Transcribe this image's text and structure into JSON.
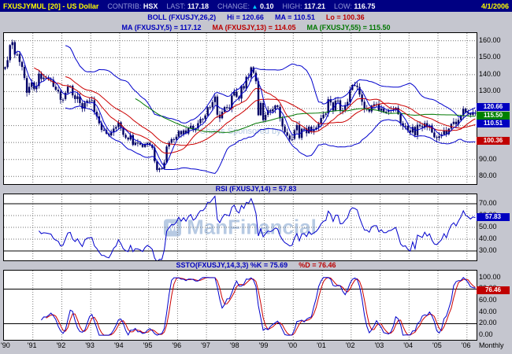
{
  "header": {
    "symbol": "FXUSJYMUL [20] - US Dollar",
    "fields": [
      {
        "label": "CONTRIB:",
        "value": "HSX"
      },
      {
        "label": "LAST:",
        "value": "117.18"
      },
      {
        "label": "CHANGE:",
        "arrow": "▲",
        "value": "0.10"
      },
      {
        "label": "HIGH:",
        "value": "117.21"
      },
      {
        "label": "LOW:",
        "value": "116.75"
      }
    ],
    "date": "4/1/2006"
  },
  "overlay_rows": {
    "boll": {
      "name": "BOLL (FXUSJY,26,2)",
      "hi": "Hi = 120.66",
      "ma": "MA = 110.51",
      "lo": "Lo = 100.36"
    },
    "ma": {
      "ma5": "MA (FXUSJY,5) = 117.12",
      "ma13": "MA (FXUSJY,13) = 114.05",
      "ma55": "MA (FXUSJY,55) = 115.50"
    }
  },
  "panels": {
    "rsi_title": "RSI (FXUSJY,14) = 57.83",
    "ssto_title_k": "SSTO(FXUSJY,14,3,3) %K = 75.69",
    "ssto_title_d": "%D = 76.46"
  },
  "axis": {
    "main_ticks": [
      "160.00",
      "150.00",
      "140.00",
      "130.00",
      "120.00",
      "110.00",
      "100.00",
      "90.00",
      "80.00"
    ],
    "main_boxes": [
      {
        "text": "120.66",
        "bg": "#0000c0"
      },
      {
        "text": "115.50",
        "bg": "#008000"
      },
      {
        "text": "110.51",
        "bg": "#0000c0"
      },
      {
        "text": "100.36",
        "bg": "#c00000"
      }
    ],
    "rsi_ticks": [
      "70.00",
      "60.00",
      "50.00",
      "40.00",
      "30.00"
    ],
    "rsi_box": {
      "text": "57.83",
      "bg": "#0000c0"
    },
    "ssto_ticks": [
      "100.00",
      "80.00",
      "60.00",
      "40.00",
      "20.00",
      "0.00"
    ],
    "ssto_box": {
      "text": "76.46",
      "bg": "#c00000"
    },
    "x_labels": [
      "'90",
      "'91",
      "'92",
      "'93",
      "'94",
      "'95",
      "'96",
      "'97",
      "'98",
      "'99",
      "'00",
      "'01",
      "'02",
      "'03",
      "'04",
      "'05",
      "'06"
    ],
    "interval_label": "Monthly"
  },
  "watermark": {
    "sponsor": "Charts Sponsored by",
    "brand": "ManFinancial",
    "logo_letter": "M"
  },
  "chart_data": {
    "type": "candlestick",
    "symbol": "FXUSJY",
    "interval": "Monthly",
    "x_range": [
      "1990-01",
      "2006-04"
    ],
    "last": 117.18,
    "change": 0.1,
    "high": 117.21,
    "low": 116.75,
    "closes": [
      144.4,
      148.5,
      157.4,
      159.1,
      151.8,
      152.1,
      147.5,
      144.5,
      138.0,
      129.3,
      132.8,
      135.4,
      131.4,
      133.3,
      140.6,
      137.4,
      138.2,
      137.9,
      137.4,
      136.9,
      132.9,
      131.1,
      130.1,
      125.2,
      125.6,
      129.3,
      133.0,
      133.4,
      127.8,
      125.6,
      127.2,
      123.2,
      119.9,
      123.4,
      124.6,
      124.8,
      124.9,
      118.1,
      115.4,
      111.3,
      107.4,
      107.3,
      105.2,
      104.2,
      105.9,
      108.2,
      109.1,
      111.9,
      109.0,
      104.5,
      102.8,
      101.8,
      104.4,
      98.6,
      99.9,
      99.6,
      98.8,
      97.4,
      98.9,
      99.7,
      98.6,
      96.9,
      88.9,
      83.8,
      84.8,
      84.6,
      88.2,
      97.6,
      99.9,
      101.9,
      101.7,
      103.4,
      106.8,
      104.8,
      107.1,
      105.3,
      108.4,
      109.9,
      107.2,
      108.3,
      111.4,
      113.9,
      113.9,
      115.9,
      120.8,
      120.7,
      123.8,
      127.1,
      116.4,
      114.3,
      118.1,
      120.9,
      120.6,
      120.1,
      127.7,
      129.9,
      127.0,
      125.9,
      133.3,
      131.8,
      138.7,
      138.3,
      144.3,
      141.1,
      136.1,
      116.1,
      123.3,
      113.2,
      116.3,
      119.1,
      118.4,
      119.6,
      121.8,
      121.0,
      114.3,
      109.5,
      106.0,
      104.1,
      101.8,
      102.2,
      107.2,
      110.3,
      102.7,
      108.1,
      108.4,
      105.5,
      109.3,
      106.6,
      107.8,
      108.8,
      111.0,
      114.4,
      116.4,
      117.1,
      125.5,
      123.6,
      118.9,
      124.7,
      124.8,
      118.9,
      119.2,
      121.8,
      123.9,
      131.0,
      133.9,
      133.5,
      132.7,
      128.3,
      124.0,
      119.9,
      119.8,
      118.3,
      121.7,
      122.5,
      122.5,
      118.8,
      119.9,
      118.1,
      118.1,
      119.0,
      119.2,
      119.9,
      120.5,
      116.7,
      111.4,
      109.6,
      109.8,
      107.1,
      105.9,
      109.2,
      104.2,
      110.4,
      109.6,
      108.9,
      111.4,
      109.0,
      110.1,
      105.9,
      103.1,
      102.7,
      103.7,
      104.7,
      107.2,
      104.9,
      108.2,
      110.9,
      112.2,
      110.7,
      113.3,
      115.7,
      119.8,
      117.9,
      117.2,
      116.3,
      117.5,
      117.18
    ],
    "price_panel": {
      "ylim": [
        75.5,
        164.5
      ],
      "gridlines": [
        80,
        90,
        100,
        110,
        120,
        130,
        140,
        150,
        160
      ],
      "overlays": {
        "boll_period": 26,
        "boll_width": 2,
        "boll_hi": 120.66,
        "boll_ma": 110.51,
        "boll_lo": 100.36,
        "ma5": 117.12,
        "ma13": 114.05,
        "ma55": 115.5
      },
      "colors": {
        "candle": "#000066",
        "boll": "#0000cc",
        "boll_mid": "#cc0000",
        "ma5": "#0000cc",
        "ma13": "#cc0000",
        "ma55": "#007700"
      }
    },
    "rsi_panel": {
      "period": 14,
      "last": 57.83,
      "ylim": [
        22,
        78
      ],
      "gridlines": [
        30,
        40,
        50,
        60,
        70
      ],
      "solid": [
        30,
        70
      ],
      "color": "#0000cc"
    },
    "ssto_panel": {
      "params": [
        14,
        3,
        3
      ],
      "k_last": 75.69,
      "d_last": 76.46,
      "ylim": [
        -8,
        112
      ],
      "gridlines": [
        20,
        80
      ],
      "solid": [
        20,
        80
      ],
      "k_color": "#0000cc",
      "d_color": "#cc0000"
    }
  }
}
